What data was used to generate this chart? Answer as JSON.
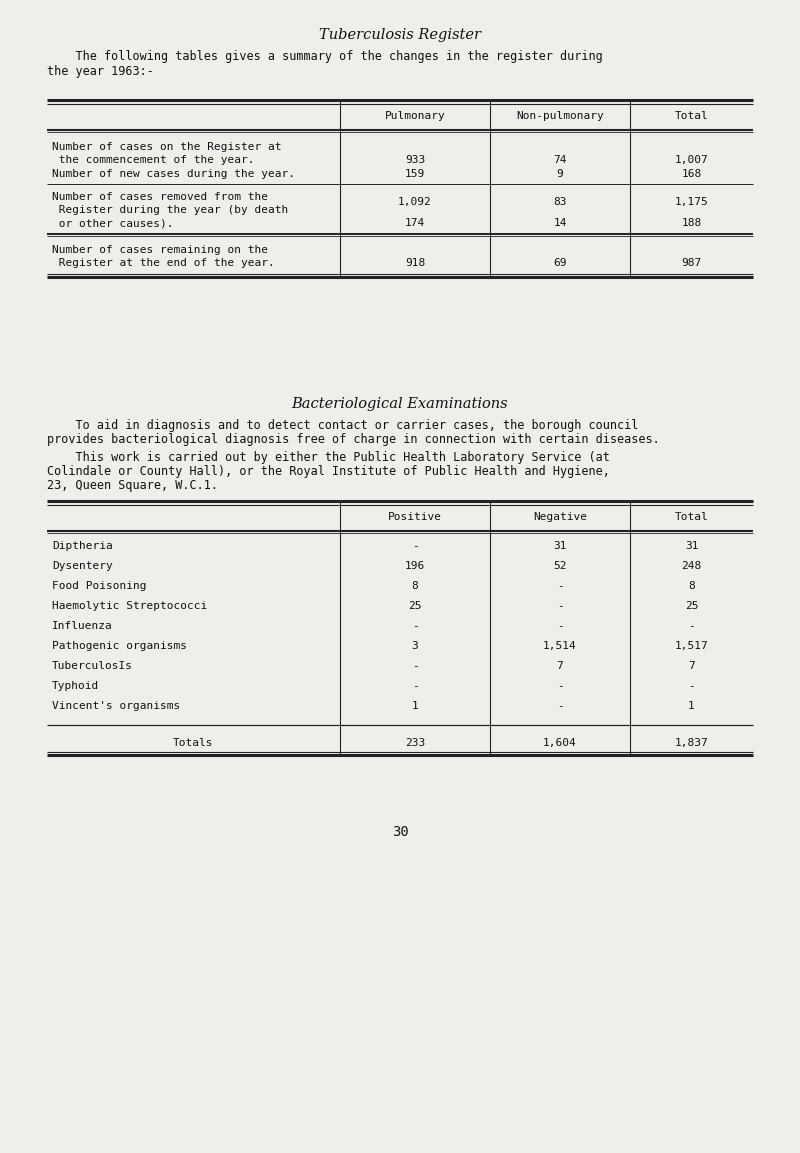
{
  "bg_color": "#f0eeea",
  "title1": "Tuberculosis Register",
  "intro_line1": "    The following tables gives a summary of the changes in the register during",
  "intro_line2": "the year 1963:-",
  "table1_headers": [
    "Pulmonary",
    "Non-pulmonary",
    "Total"
  ],
  "title2": "Bacteriological Examinations",
  "bact_para1_line1": "    To aid in diagnosis and to detect contact or carrier cases, the borough council",
  "bact_para1_line2": "provides bacteriological diagnosis free of charge in connection with certain diseases.",
  "bact_para2_line1": "    This work is carried out by either the Public Health Laboratory Service (at",
  "bact_para2_line2": "Colindale or County Hall), or the Royal Institute of Public Health and Hygiene,",
  "bact_para2_line3": "23, Queen Square, W.C.1.",
  "table2_headers": [
    "Positive",
    "Negative",
    "Total"
  ],
  "table2_rows": [
    [
      "Diptheria",
      "-",
      "31",
      "31"
    ],
    [
      "Dysentery",
      "196",
      "52",
      "248"
    ],
    [
      "Food Poisoning",
      "8",
      "-",
      "8"
    ],
    [
      "Haemolytic Streptococci",
      "25",
      "-",
      "25"
    ],
    [
      "Influenza",
      "-",
      "-",
      "-"
    ],
    [
      "Pathogenic organisms",
      "3",
      "1,514",
      "1,517"
    ],
    [
      "TuberculosIs",
      "-",
      "7",
      "7"
    ],
    [
      "Typhoid",
      "-",
      "-",
      "-"
    ],
    [
      "Vincent's organisms",
      "1",
      "-",
      "1"
    ]
  ],
  "table2_totals": [
    "Totals",
    "233",
    "1,604",
    "1,837"
  ],
  "page_number": "30",
  "fs_title": 10.5,
  "fs_body": 8.5,
  "fs_table": 8.0
}
